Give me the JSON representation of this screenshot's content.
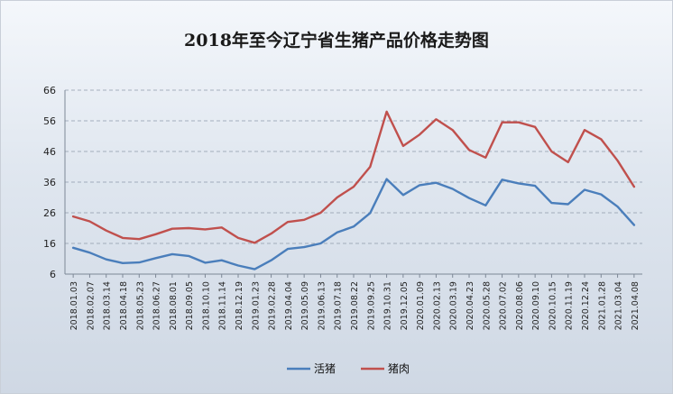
{
  "chart_data": {
    "type": "line",
    "title": "2018年至今辽宁省生猪产品价格走势图",
    "xlabel": "",
    "ylabel": "",
    "ylim": [
      6,
      66
    ],
    "yticks": [
      6,
      16,
      26,
      36,
      46,
      56,
      66
    ],
    "grid": true,
    "legend_position": "bottom-center",
    "categories": [
      "2018.01.03",
      "2018.02.07",
      "2018.03.14",
      "2018.04.18",
      "2018.05.23",
      "2018.06.27",
      "2018.08.01",
      "2018.09.05",
      "2018.10.10",
      "2018.11.14",
      "2018.12.19",
      "2019.01.23",
      "2019.02.28",
      "2019.04.04",
      "2019.05.09",
      "2019.06.13",
      "2019.07.18",
      "2019.08.22",
      "2019.09.25",
      "2019.10.31",
      "2019.12.05",
      "2020.01.09",
      "2020.02.13",
      "2020.03.19",
      "2020.04.23",
      "2020.05.28",
      "2020.07.02",
      "2020.08.06",
      "2020.09.10",
      "2020.10.15",
      "2020.11.19",
      "2020.12.24",
      "2021.01.28",
      "2021.03.04",
      "2021.04.08"
    ],
    "series": [
      {
        "name": "活猪",
        "color": "#4a7ebb",
        "values": [
          14.6,
          13.0,
          10.8,
          9.6,
          9.8,
          11.2,
          12.5,
          11.9,
          9.7,
          10.5,
          8.8,
          7.6,
          10.5,
          14.2,
          14.8,
          16.0,
          19.6,
          21.5,
          25.9,
          37.0,
          31.8,
          35.0,
          35.8,
          33.8,
          30.8,
          28.4,
          36.8,
          35.6,
          34.8,
          29.2,
          28.8,
          33.5,
          32.0,
          28.0,
          22.0
        ]
      },
      {
        "name": "猪肉",
        "color": "#c0504d",
        "values": [
          24.8,
          23.2,
          20.2,
          17.8,
          17.4,
          19.0,
          20.8,
          21.0,
          20.6,
          21.2,
          17.8,
          16.2,
          19.2,
          23.0,
          23.7,
          26.0,
          31.0,
          34.5,
          41.0,
          59.0,
          47.8,
          51.5,
          56.5,
          53.0,
          46.5,
          44.0,
          55.5,
          55.5,
          54.0,
          46.0,
          42.5,
          53.0,
          50.0,
          43.0,
          34.5
        ]
      }
    ]
  }
}
